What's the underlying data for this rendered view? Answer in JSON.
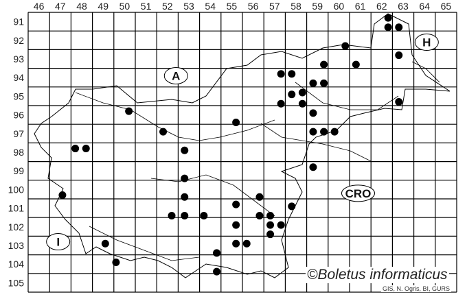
{
  "map": {
    "columns": [
      "46",
      "47",
      "48",
      "49",
      "50",
      "51",
      "52",
      "53",
      "54",
      "55",
      "56",
      "57",
      "58",
      "59",
      "60",
      "61",
      "62",
      "63",
      "64",
      "65"
    ],
    "rows": [
      "91",
      "92",
      "93",
      "94",
      "95",
      "96",
      "97",
      "98",
      "99",
      "100",
      "101",
      "102",
      "103",
      "104",
      "105"
    ],
    "region_labels": [
      {
        "text": "A",
        "col": 52.9,
        "row": 94.4
      },
      {
        "text": "H",
        "col": 64.6,
        "row": 92.6
      },
      {
        "text": "CRO",
        "col": 61.4,
        "row": 100.7
      },
      {
        "text": "I",
        "col": 47.4,
        "row": 103.3
      }
    ],
    "occurrence_points": [
      {
        "col": 62.8,
        "row": 91.3
      },
      {
        "col": 62.8,
        "row": 91.8
      },
      {
        "col": 63.3,
        "row": 91.8
      },
      {
        "col": 60.8,
        "row": 92.8
      },
      {
        "col": 63.3,
        "row": 93.3
      },
      {
        "col": 59.8,
        "row": 93.8
      },
      {
        "col": 61.3,
        "row": 93.8
      },
      {
        "col": 57.8,
        "row": 94.3
      },
      {
        "col": 58.3,
        "row": 94.3
      },
      {
        "col": 59.3,
        "row": 94.8
      },
      {
        "col": 59.8,
        "row": 94.8
      },
      {
        "col": 58.3,
        "row": 95.4
      },
      {
        "col": 58.8,
        "row": 95.3
      },
      {
        "col": 57.8,
        "row": 95.9
      },
      {
        "col": 58.8,
        "row": 95.9
      },
      {
        "col": 63.3,
        "row": 95.8
      },
      {
        "col": 59.3,
        "row": 96.4
      },
      {
        "col": 50.7,
        "row": 96.3
      },
      {
        "col": 55.7,
        "row": 96.9
      },
      {
        "col": 52.3,
        "row": 97.4
      },
      {
        "col": 59.3,
        "row": 97.4
      },
      {
        "col": 59.8,
        "row": 97.4
      },
      {
        "col": 60.3,
        "row": 97.4
      },
      {
        "col": 48.2,
        "row": 98.3
      },
      {
        "col": 48.7,
        "row": 98.3
      },
      {
        "col": 53.3,
        "row": 98.4
      },
      {
        "col": 59.3,
        "row": 99.3
      },
      {
        "col": 53.3,
        "row": 99.9
      },
      {
        "col": 47.6,
        "row": 100.8
      },
      {
        "col": 53.3,
        "row": 100.9
      },
      {
        "col": 56.8,
        "row": 100.9
      },
      {
        "col": 52.7,
        "row": 101.9
      },
      {
        "col": 53.3,
        "row": 101.9
      },
      {
        "col": 54.2,
        "row": 101.9
      },
      {
        "col": 55.7,
        "row": 101.3
      },
      {
        "col": 55.7,
        "row": 102.4
      },
      {
        "col": 56.8,
        "row": 101.9
      },
      {
        "col": 57.3,
        "row": 101.9
      },
      {
        "col": 58.3,
        "row": 101.4
      },
      {
        "col": 57.3,
        "row": 102.4
      },
      {
        "col": 57.8,
        "row": 102.4
      },
      {
        "col": 57.3,
        "row": 102.9
      },
      {
        "col": 49.6,
        "row": 103.4
      },
      {
        "col": 55.7,
        "row": 103.4
      },
      {
        "col": 56.2,
        "row": 103.4
      },
      {
        "col": 50.1,
        "row": 104.4
      },
      {
        "col": 54.8,
        "row": 103.9
      },
      {
        "col": 54.8,
        "row": 104.9
      }
    ],
    "point_color": "#000000"
  },
  "copyright": "©Boletus informaticus",
  "credit": "GIS, N. Ogris, BI, GURS"
}
